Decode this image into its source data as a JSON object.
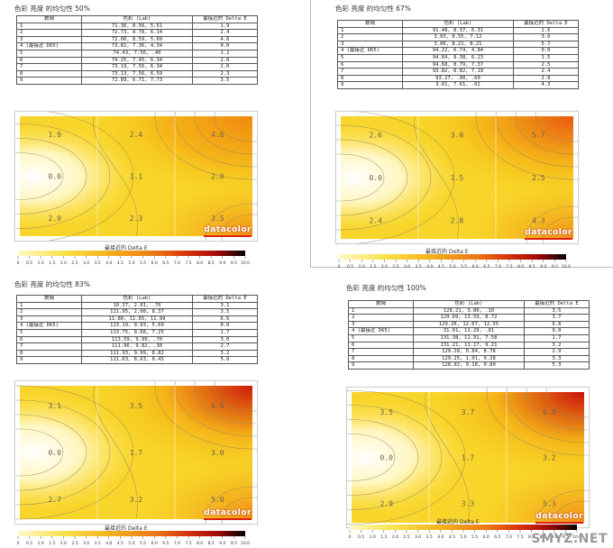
{
  "panels": [
    {
      "title": "色彩 亮度 的均匀性 50%",
      "headers": [
        "数隔",
        "色彩 (Lab)",
        "最接近的 Delta E"
      ],
      "rows": [
        [
          "1",
          "71.36, 8.56, 5.51",
          "1.9"
        ],
        [
          "2",
          "72.73, 8.78, 6.14",
          "2.4"
        ],
        [
          "3",
          "72.06, 8.59, 5.69",
          "4.6"
        ],
        [
          "4 (最接近 D65)",
          "73.81, 7.36, 4.34",
          "0.0"
        ],
        [
          "5",
          "74.43, 7.56, .40",
          "1.1"
        ],
        [
          "6",
          "74.25, 7.45, 6.34",
          "2.0"
        ],
        [
          "7",
          "73.19, 7.56, 6.34",
          "2.0"
        ],
        [
          "8",
          "73.13, 7.56, 6.59",
          "2.3"
        ],
        [
          "9",
          "72.89, 6.71, 7.73",
          "3.5"
        ]
      ],
      "map_values": [
        "1.9",
        "2.4",
        "4.6",
        "0.0",
        "1.1",
        "2.0",
        "2.0",
        "2.3",
        "3.5"
      ],
      "legend_title": "最接近的 Delta E",
      "legend_ticks": [
        "0",
        "0.5",
        "1.0",
        "1.5",
        "2.0",
        "2.5",
        "3.0",
        "3.5",
        "4.0",
        "4.5",
        "5.0",
        "5.5",
        "6.0",
        "6.5",
        "7.0",
        "7.5",
        "8.0",
        "8.5",
        "9.0",
        "9.5",
        "10.0"
      ],
      "watermark": "datacolor",
      "hot_color": "#f08a10"
    },
    {
      "title": "色彩 亮度 的均匀性 67%",
      "headers": [
        "数隔",
        "色彩 (Lab)",
        "最接近的 Delta E"
      ],
      "rows": [
        [
          "1",
          "91.48, 8.37, 6.31",
          "2.6"
        ],
        [
          "2",
          "3.03, 8.55, 7.12",
          "3.0"
        ],
        [
          "3",
          "3.06, 8.21, 8.21",
          "5.7"
        ],
        [
          "4 (最接近 D65)",
          "94.22, 6.74, 4.84",
          "0.0"
        ],
        [
          "5",
          "94.84, 8.38, 6.23",
          "1.5"
        ],
        [
          "6",
          "94.68, 8.79, 7.37",
          "2.5"
        ],
        [
          "7",
          "93.82, 8.82, 7.19",
          "2.4"
        ],
        [
          "8",
          "93.27, .90, .60",
          "2.8"
        ],
        [
          "9",
          "3.01, 7.61, .02",
          "4.3"
        ]
      ],
      "map_values": [
        "2.6",
        "3.0",
        "5.7",
        "0.0",
        "1.5",
        "2.5",
        "2.4",
        "2.8",
        "4.3"
      ],
      "legend_title": "最接近的 Delta E",
      "legend_ticks": [
        "0",
        "0.5",
        "1.0",
        "1.5",
        "2.0",
        "2.5",
        "3.0",
        "3.5",
        "4.0",
        "4.5",
        "5.0",
        "5.5",
        "6.0",
        "6.5",
        "7.0",
        "7.5",
        "8.0",
        "8.5",
        "9.0",
        "9.5",
        "10.0"
      ],
      "watermark": "datacolor",
      "hot_color": "#e85a10"
    },
    {
      "title": "色彩 亮度 的均匀性 83%",
      "headers": [
        "数隔",
        "色彩 (Lab)",
        "最接近的 Delta E"
      ],
      "rows": [
        [
          "1",
          "10.37, 2.01, .70",
          "3.1"
        ],
        [
          "2",
          "111.95, 2.08, 8.37",
          "3.5"
        ],
        [
          "3",
          "11.80, 11.65, 11.99",
          "6.6"
        ],
        [
          "4 (最接近 D65)",
          "113.19, 9.93, 5.69",
          "0.0"
        ],
        [
          "5",
          "113.75, 0.68, 7.25",
          "1.7"
        ],
        [
          "6",
          "113.59, 9.99, .70",
          "3.0"
        ],
        [
          "7",
          "111.96, 9.82, .30",
          "2.7"
        ],
        [
          "8",
          "111.93, 9.99, 8.82",
          "3.2"
        ],
        [
          "9",
          "111.63, 8.63, 0.45",
          "5.0"
        ]
      ],
      "map_values": [
        "3.1",
        "3.5",
        "6.6",
        "0.0",
        "1.7",
        "3.0",
        "2.7",
        "3.2",
        "5.0"
      ],
      "legend_title": "最接近的 Delta E",
      "legend_ticks": [
        "0",
        "0.5",
        "1.0",
        "1.5",
        "2.0",
        "2.5",
        "3.0",
        "3.5",
        "4.0",
        "4.5",
        "5.0",
        "5.5",
        "6.0",
        "6.5",
        "7.0",
        "7.5",
        "8.0",
        "8.5",
        "9.0",
        "9.5",
        "10.0"
      ],
      "watermark": "datacolor",
      "hot_color": "#cc1a0a"
    },
    {
      "title": "色彩 亮度 的均匀性 100%",
      "headers": [
        "数隔",
        "色彩 (Lab)",
        "最接近的 Delta E"
      ],
      "rows": [
        [
          "1",
          "128.21, 3.80, .10",
          "3.5"
        ],
        [
          "2",
          "129.69, 13.59, 8.72",
          "3.7"
        ],
        [
          "3",
          "129.26, 12.67, 12.55",
          "6.8"
        ],
        [
          "4 (最接近 D65)",
          "31.61, 11.29, .01",
          "0.0"
        ],
        [
          "5",
          "131.38, 11.91, 7.58",
          "1.7"
        ],
        [
          "6",
          "131.21, 11.17, 9.21",
          "3.2"
        ],
        [
          "7",
          "129.28, 0.84, 8.78",
          "2.9"
        ],
        [
          "8",
          "129.25, 1.01, 9.28",
          "3.3"
        ],
        [
          "9",
          "128.92, 9.18, 0.89",
          "5.3"
        ]
      ],
      "map_values": [
        "3.5",
        "3.7",
        "6.8",
        "0.0",
        "1.7",
        "3.2",
        "2.9",
        "3.3",
        "5.3"
      ],
      "legend_title": "最接近的 Delta E",
      "legend_ticks": [
        "0",
        "0.5",
        "1.0",
        "1.5",
        "2.0",
        "2.5",
        "3.0",
        "3.5",
        "4.0",
        "4.5",
        "5.0",
        "5.5",
        "6.0",
        "6.5",
        "7.0",
        "7.5",
        "8.0",
        "8.5",
        "9.0",
        "9.5",
        "10.0"
      ],
      "watermark": "datacolor",
      "hot_color": "#c8120a"
    }
  ],
  "site_watermark": "SMYZ.NET"
}
